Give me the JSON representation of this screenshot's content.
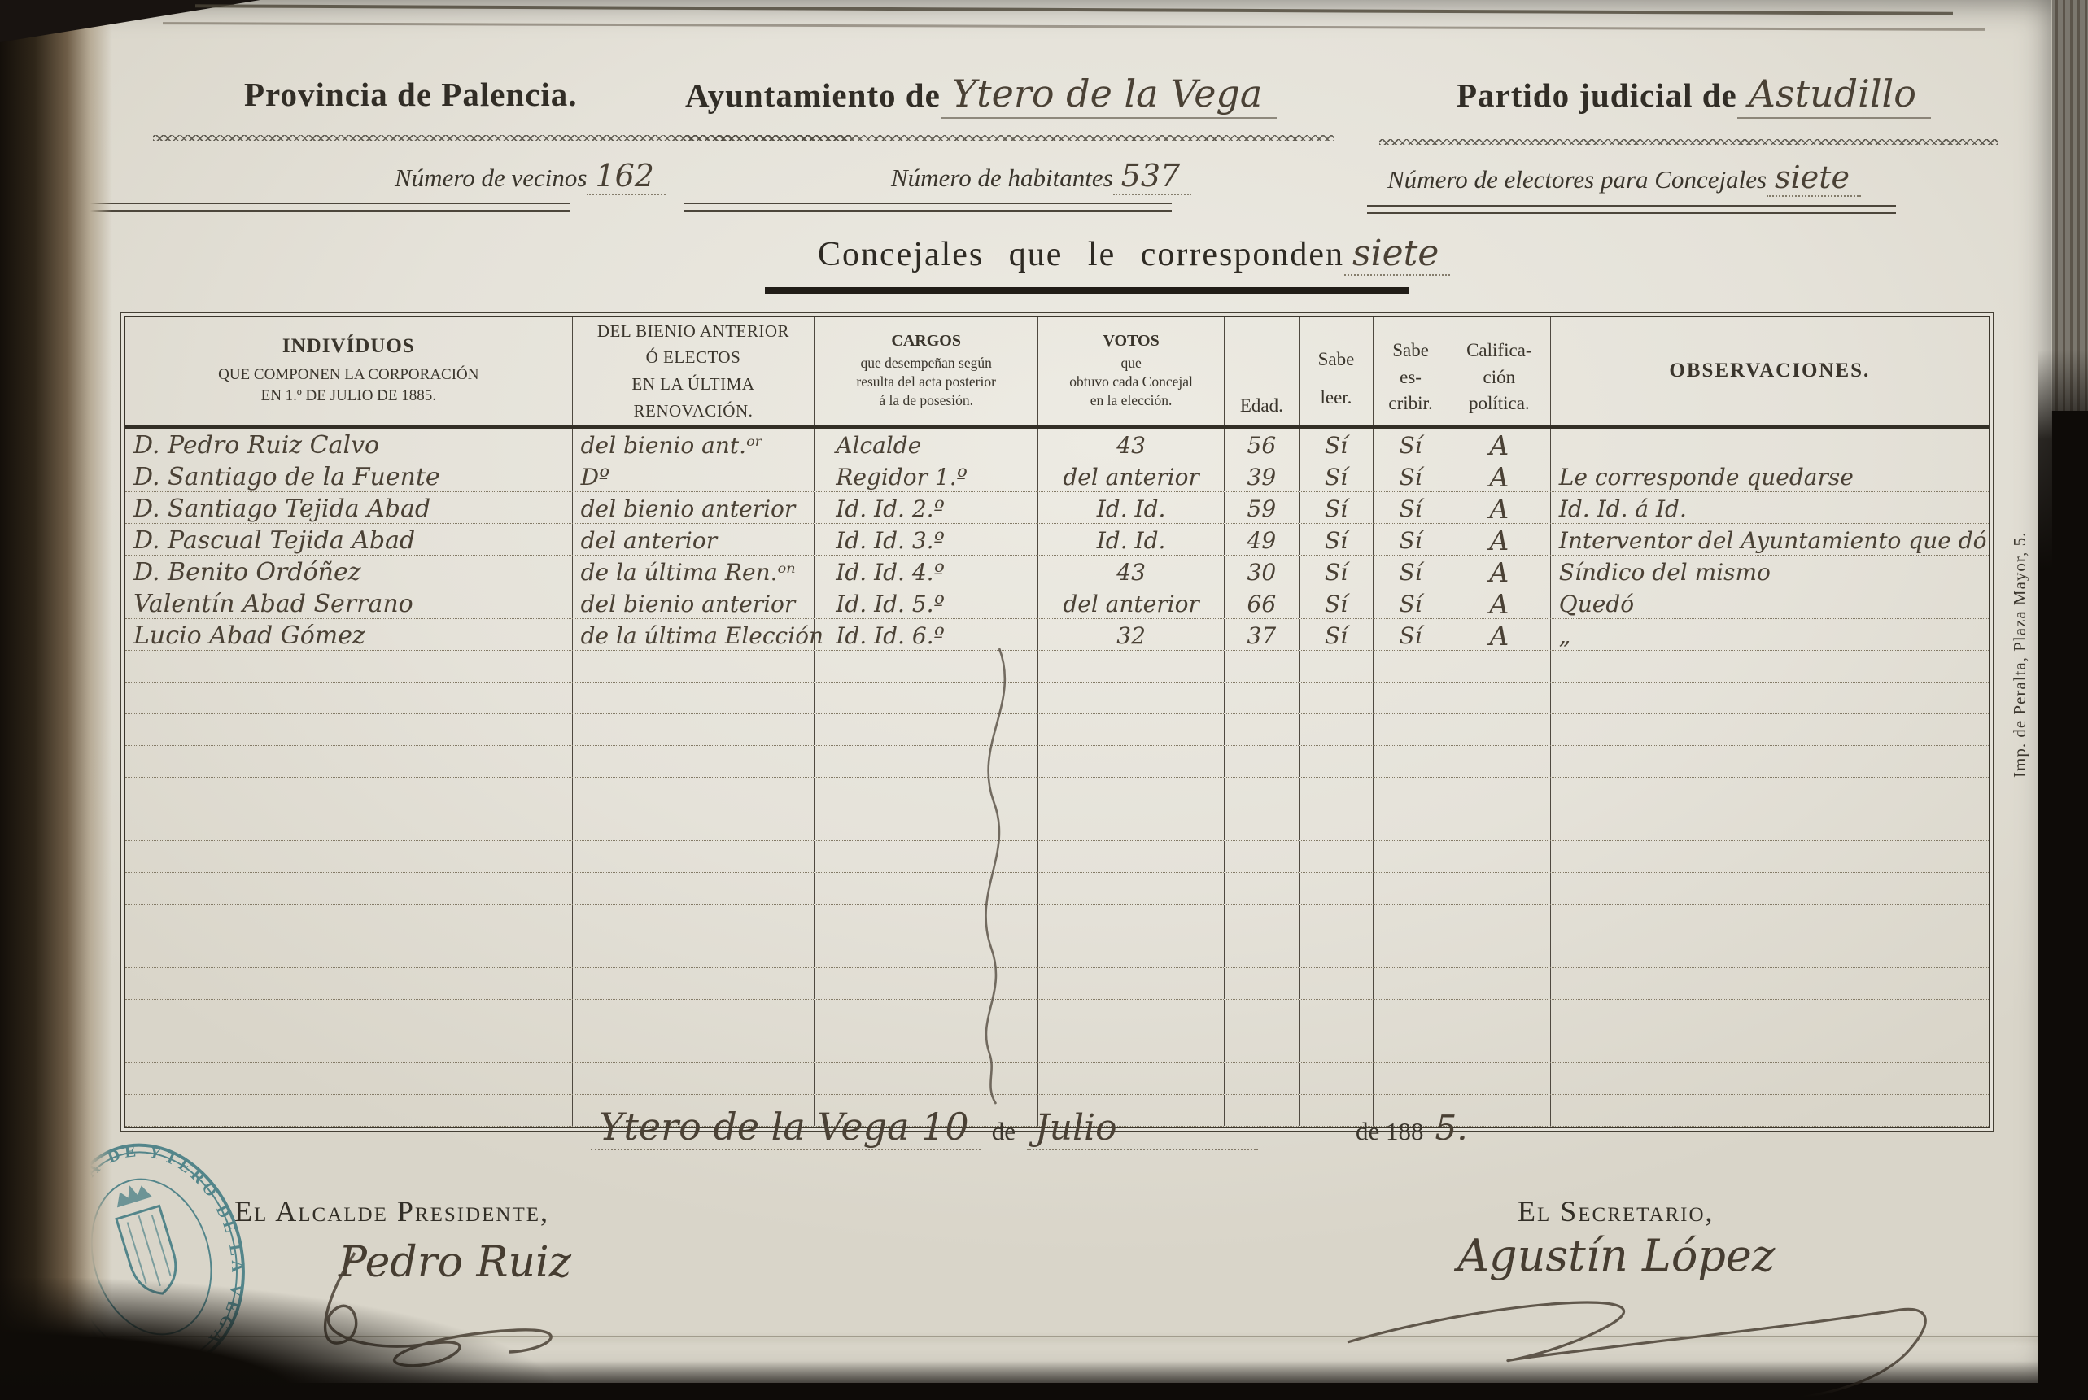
{
  "header": {
    "province": {
      "label": "Provincia de Palencia."
    },
    "municipality": {
      "label": "Ayuntamiento de",
      "value": "Ytero de la Vega"
    },
    "judicial_district": {
      "label": "Partido judicial de",
      "value": "Astudillo"
    },
    "vecinos": {
      "label": "Número de vecinos",
      "value": "162"
    },
    "habitantes": {
      "label": "Número de habitantes",
      "value": "537"
    },
    "electores": {
      "label": "Número de electores para Concejales",
      "value": "siete"
    },
    "concejales": {
      "label": "Concejales que le corresponden",
      "value": "siete"
    }
  },
  "table": {
    "headers": {
      "individuos_title": "INDIVÍDUOS",
      "individuos_sub": "QUE COMPONEN LA CORPORACIÓN\nEN 1.º DE JULIO DE 1885.",
      "bienio": "DEL BIENIO ANTERIOR\nÓ ELECTOS\nEN LA ÚLTIMA RENOVACIÓN.",
      "cargos_title": "CARGOS",
      "cargos_sub": "que desempeñan según\nresulta del acta posterior\ná la de posesión.",
      "votos_title": "VOTOS",
      "votos_sub": "que\nobtuvo cada Concejal\nen la elección.",
      "edad": "Edad.",
      "sabe_leer": "Sabe\nleer.",
      "sabe_escribir": "Sabe\nes-\ncribir.",
      "calificacion": "Califica-\nción\npolítica.",
      "observaciones": "OBSERVACIONES."
    },
    "rows": [
      {
        "name": "D. Pedro Ruiz Calvo",
        "bienio": "del bienio ant.ᵒʳ",
        "cargo": "Alcalde",
        "votos": "43",
        "edad": "56",
        "leer": "Sí",
        "escribir": "Sí",
        "calificacion": "A",
        "observaciones": ""
      },
      {
        "name": "D. Santiago de la Fuente",
        "bienio": "Dº",
        "cargo": "Regidor 1.º",
        "votos": "del anterior",
        "edad": "39",
        "leer": "Sí",
        "escribir": "Sí",
        "calificacion": "A",
        "observaciones": "Le corresponde quedarse"
      },
      {
        "name": "D. Santiago Tejida Abad",
        "bienio": "del bienio anterior",
        "cargo": "Id. Id. 2.º",
        "votos": "Id. Id.",
        "edad": "59",
        "leer": "Sí",
        "escribir": "Sí",
        "calificacion": "A",
        "observaciones": "Id. Id. á Id."
      },
      {
        "name": "D. Pascual Tejida Abad",
        "bienio": "del anterior",
        "cargo": "Id. Id. 3.º",
        "votos": "Id. Id.",
        "edad": "49",
        "leer": "Sí",
        "escribir": "Sí",
        "calificacion": "A",
        "observaciones": "Interventor del Ayuntamiento que dó"
      },
      {
        "name": "D. Benito Ordóñez",
        "bienio": "de la última Ren.ᵒⁿ",
        "cargo": "Id. Id. 4.º",
        "votos": "43",
        "edad": "30",
        "leer": "Sí",
        "escribir": "Sí",
        "calificacion": "A",
        "observaciones": "Síndico del mismo"
      },
      {
        "name": "Valentín Abad Serrano",
        "bienio": "del bienio anterior",
        "cargo": "Id. Id. 5.º",
        "votos": "del anterior",
        "edad": "66",
        "leer": "Sí",
        "escribir": "Sí",
        "calificacion": "A",
        "observaciones": "Quedó"
      },
      {
        "name": "Lucio Abad Gómez",
        "bienio": "de la última Elección",
        "cargo": "Id. Id. 6.º",
        "votos": "32",
        "edad": "37",
        "leer": "Sí",
        "escribir": "Sí",
        "calificacion": "A",
        "observaciones": "„"
      }
    ],
    "empty_row_count": 15
  },
  "footer": {
    "date": {
      "place": "Ytero de la Vega",
      "day": "10",
      "de1": "de",
      "month": "Julio",
      "de2": "de 188",
      "year": "5."
    },
    "alcalde": {
      "label": "El Alcalde Presidente,",
      "signature": "Pedro Ruiz"
    },
    "secretario": {
      "label": "El Secretario,",
      "signature": "Agustín López"
    },
    "stamp": {
      "text": "ALCALDÍA DE YTERO DE LA VEGA"
    },
    "printer": "Imp. de Peralta, Plaza Mayor, 5."
  },
  "colors": {
    "paper": "#e5e2d9",
    "ink": "#332f27",
    "handwriting": "#4a4135",
    "stamp": "#2e6f79"
  }
}
